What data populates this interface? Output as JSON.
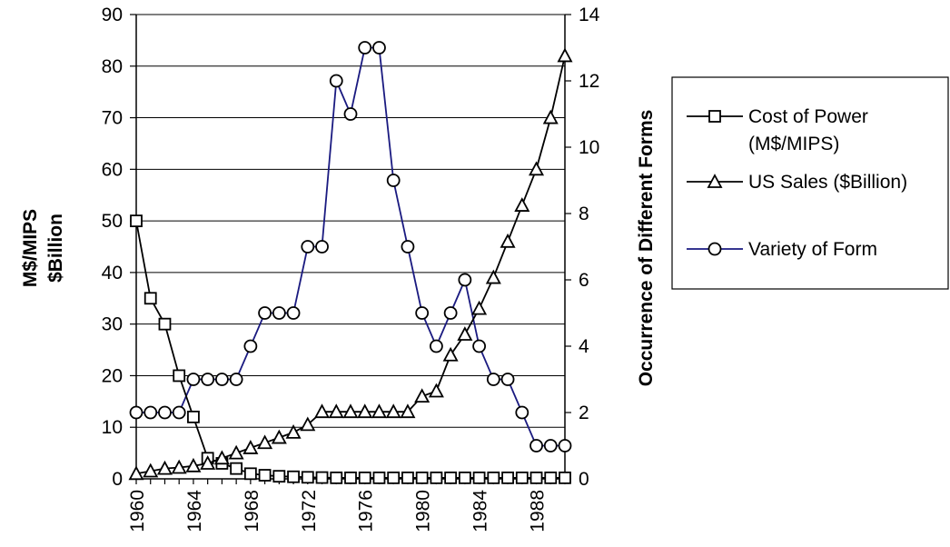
{
  "chart_data": {
    "type": "line",
    "x": [
      1960,
      1961,
      1962,
      1963,
      1964,
      1965,
      1966,
      1967,
      1968,
      1969,
      1970,
      1971,
      1972,
      1973,
      1974,
      1975,
      1976,
      1977,
      1978,
      1979,
      1980,
      1981,
      1982,
      1983,
      1984,
      1985,
      1986,
      1987,
      1988,
      1989,
      1990
    ],
    "x_tick_labels": [
      "1960",
      "1964",
      "1968",
      "1972",
      "1976",
      "1980",
      "1984",
      "1988"
    ],
    "y_left": {
      "label_line1": "M$/MIPS",
      "label_line2": "$Billion",
      "range": [
        0,
        90
      ],
      "ticks": [
        "0",
        "10",
        "20",
        "30",
        "40",
        "50",
        "60",
        "70",
        "80",
        "90"
      ]
    },
    "y_right": {
      "label": "Occurrence of Different Forms",
      "range": [
        0,
        14
      ],
      "ticks": [
        "0",
        "2",
        "4",
        "6",
        "8",
        "10",
        "12",
        "14"
      ]
    },
    "grid": true,
    "legend_placement": "right",
    "series": [
      {
        "name_line1": "Cost of Power",
        "name_line2": "(M$/MIPS)",
        "axis": "left",
        "marker": "square",
        "color": "#000000",
        "values": [
          50,
          35,
          30,
          20,
          12,
          4,
          3,
          2,
          1,
          0.7,
          0.5,
          0.4,
          0.3,
          0.25,
          0.2,
          0.2,
          0.2,
          0.2,
          0.2,
          0.2,
          0.2,
          0.2,
          0.2,
          0.2,
          0.2,
          0.2,
          0.2,
          0.2,
          0.2,
          0.2,
          0.2
        ]
      },
      {
        "name_line1": "US Sales ($Billion)",
        "name_line2": "",
        "axis": "left",
        "marker": "triangle",
        "color": "#000000",
        "values": [
          1,
          1.5,
          2,
          2.2,
          2.5,
          3,
          4,
          5,
          6,
          7,
          8,
          9,
          10.5,
          13,
          13,
          13,
          13,
          13,
          13,
          13,
          16,
          17,
          24,
          28,
          33,
          39,
          46,
          53,
          60,
          70,
          82
        ]
      },
      {
        "name_line1": "Variety of Form",
        "name_line2": "",
        "axis": "right",
        "marker": "circle",
        "color": "#1a1a80",
        "values": [
          2,
          2,
          2,
          2,
          3,
          3,
          3,
          3,
          4,
          5,
          5,
          5,
          7,
          7,
          12,
          11,
          13,
          13,
          9,
          7,
          5,
          4,
          5,
          6,
          4,
          3,
          3,
          2,
          1,
          1,
          1
        ]
      }
    ]
  }
}
